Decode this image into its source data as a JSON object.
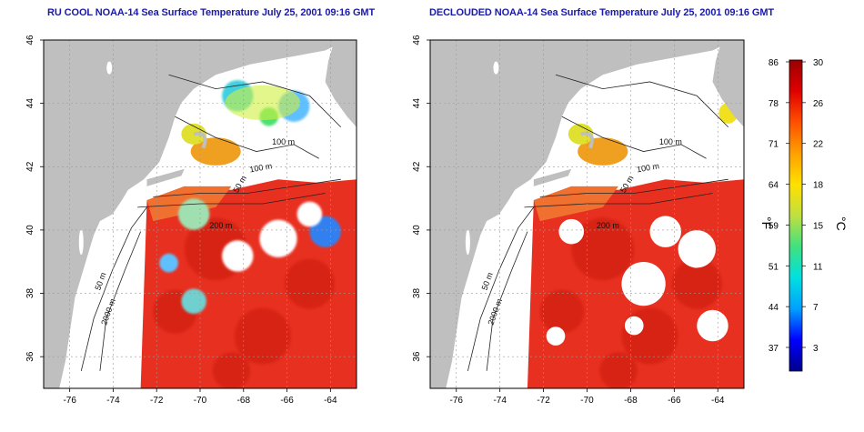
{
  "panels": [
    {
      "title": "RU COOL NOAA-14 Sea Surface Temperature July 25, 2001 09:16 GMT",
      "contour_labels": [
        "100 m",
        "100 m",
        "50 m",
        "200 m",
        "50 m",
        "2000 m"
      ],
      "clouds": "present"
    },
    {
      "title": "DECLOUDED NOAA-14 Sea Surface Temperature July 25, 2001 09:16 GMT",
      "contour_labels": [
        "100 m",
        "100 m",
        "50 m",
        "200 m",
        "50 m",
        "2000 m"
      ],
      "clouds": "removed"
    }
  ],
  "axes": {
    "lon_ticks": [
      "-76",
      "-74",
      "-72",
      "-70",
      "-68",
      "-66",
      "-64"
    ],
    "lat_ticks": [
      "36",
      "38",
      "40",
      "42",
      "44",
      "46"
    ],
    "lon_range": [
      -77.2,
      -62.8
    ],
    "lat_range": [
      35.0,
      46.0
    ]
  },
  "colorbar": {
    "unit_f": "°F",
    "unit_c": "°C",
    "f_ticks": [
      "86",
      "78",
      "71",
      "64",
      "59",
      "51",
      "44",
      "37"
    ],
    "c_ticks": [
      "30",
      "26",
      "22",
      "18",
      "15",
      "11",
      "7",
      "3"
    ],
    "range_c": [
      0,
      30
    ],
    "colors": [
      "#00008c",
      "#0000ff",
      "#00a0ff",
      "#00e0e0",
      "#40e080",
      "#c0e040",
      "#ffe000",
      "#ffa000",
      "#ff5000",
      "#e00000",
      "#9a0000"
    ]
  },
  "colors": {
    "land": "#bfbfbf",
    "ocean_warm": "#e83020",
    "title": "#1a1aa8"
  }
}
